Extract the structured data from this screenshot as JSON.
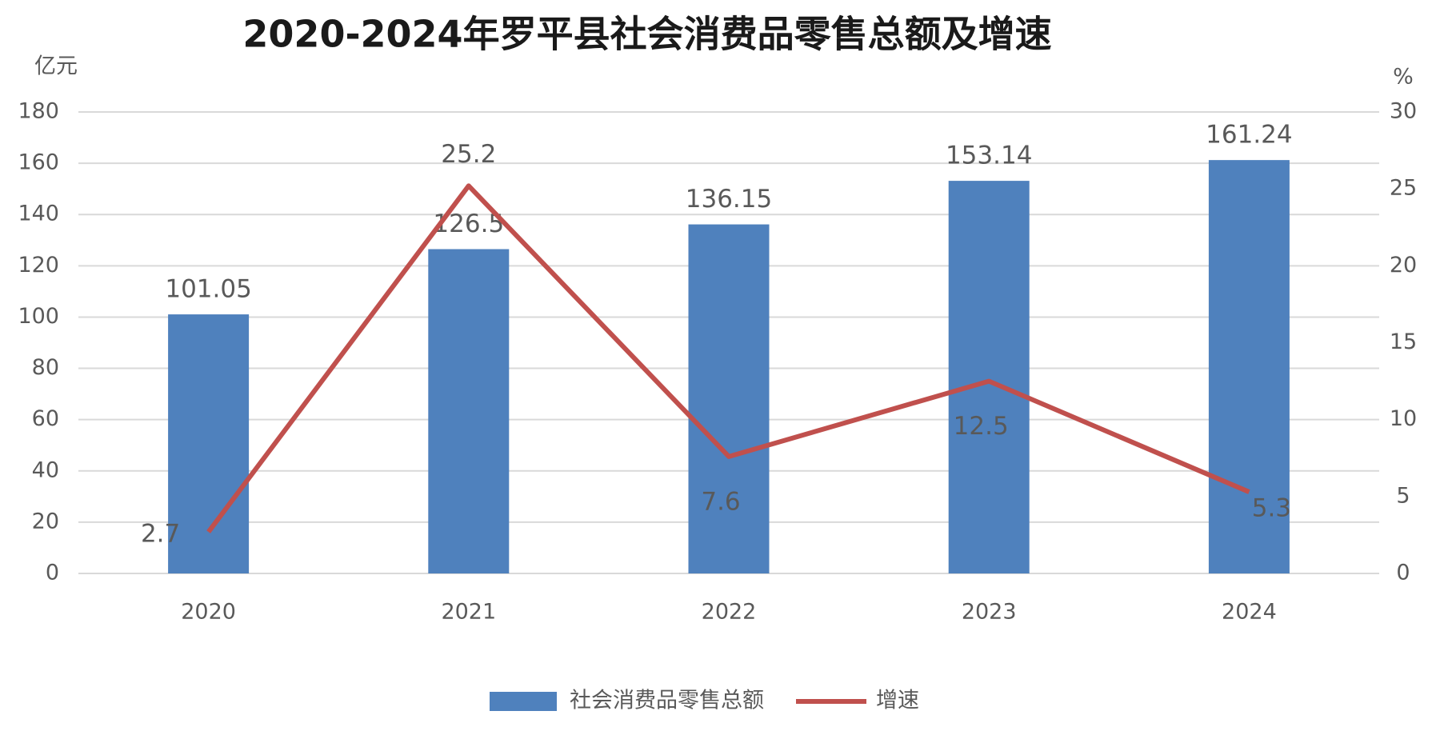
{
  "chart_data": {
    "type": "bar",
    "title": "2020-2024年罗平县社会消费品零售总额及增速",
    "y_label": "亿元",
    "y2_label": "%",
    "categories": [
      "2020",
      "2021",
      "2022",
      "2023",
      "2024"
    ],
    "series": [
      {
        "name": "社会消费品零售总额",
        "color": "#4f81bd",
        "values": [
          101.05,
          126.5,
          136.15,
          153.14,
          161.24
        ]
      },
      {
        "name": "增速",
        "color": "#c0504d",
        "type": "line",
        "axis": "y2",
        "values": [
          2.7,
          25.2,
          7.6,
          12.5,
          5.3
        ]
      }
    ],
    "ylim": [
      0,
      180
    ],
    "yticks": [
      0,
      20,
      40,
      60,
      80,
      100,
      120,
      140,
      160,
      180
    ],
    "y2lim": [
      0,
      30
    ],
    "y2ticks": [
      0,
      5,
      10,
      15,
      20,
      25,
      30
    ],
    "grid": true
  }
}
